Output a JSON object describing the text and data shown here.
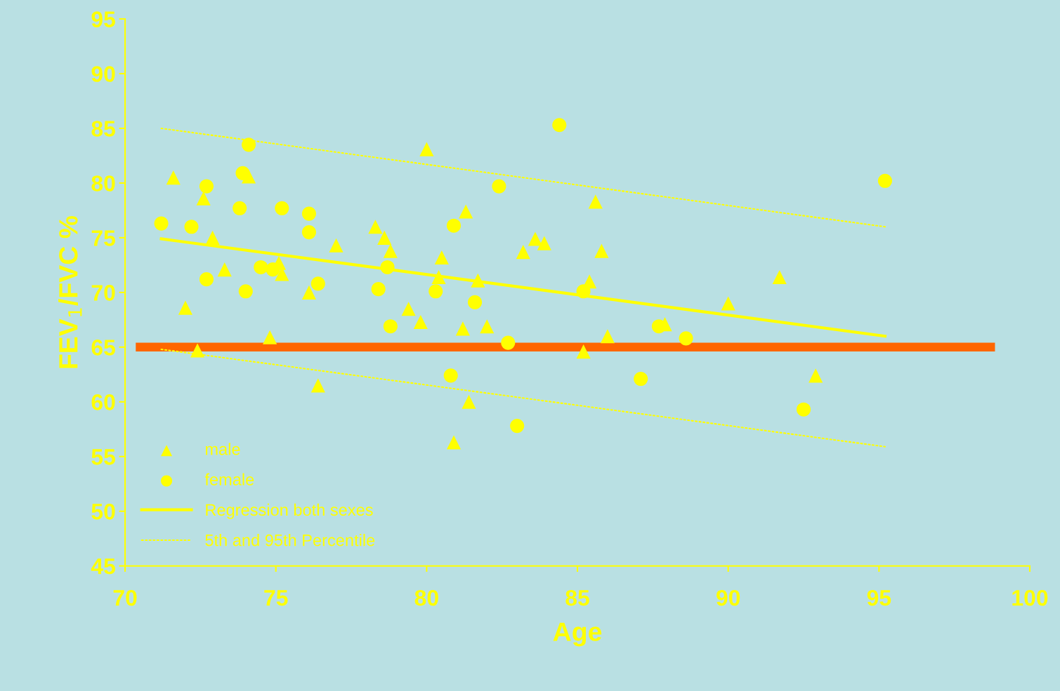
{
  "chart_data": {
    "type": "scatter",
    "xlabel": "Age",
    "ylabel": "FEV$_{1}$/FVC %",
    "xlim": [
      70,
      100
    ],
    "xticks": [
      70,
      75,
      80,
      85,
      90,
      95,
      100
    ],
    "ylim": [
      45,
      95
    ],
    "yticks": [
      45,
      50,
      55,
      60,
      65,
      70,
      75,
      80,
      85,
      90,
      95
    ],
    "grid": false,
    "legend": "bottom left",
    "series": [
      {
        "name": "male",
        "marker": "triangle",
        "color": "#ffff00",
        "x": [
          71.6,
          72.0,
          72.4,
          72.6,
          72.9,
          73.3,
          74.1,
          74.8,
          75.1,
          75.2,
          76.1,
          76.4,
          77.0,
          78.3,
          78.6,
          78.8,
          79.4,
          79.8,
          80.0,
          80.4,
          80.5,
          80.9,
          81.2,
          81.3,
          81.4,
          81.7,
          82.0,
          83.2,
          83.6,
          83.9,
          85.2,
          85.4,
          85.6,
          85.8,
          86.0,
          87.9,
          90.0,
          91.7,
          92.9
        ],
        "values": [
          80.5,
          68.6,
          64.7,
          78.6,
          75.0,
          72.1,
          80.6,
          65.9,
          72.7,
          71.7,
          70.0,
          61.5,
          74.3,
          76.0,
          75.0,
          73.8,
          68.5,
          67.3,
          83.1,
          71.4,
          73.2,
          56.3,
          66.7,
          77.4,
          60.0,
          71.1,
          66.9,
          73.7,
          74.9,
          74.5,
          64.6,
          71.0,
          78.3,
          73.8,
          66.0,
          67.1,
          69.0,
          71.4,
          62.4
        ]
      },
      {
        "name": "female",
        "marker": "circle",
        "color": "#ffff00",
        "x": [
          71.2,
          72.2,
          72.7,
          72.7,
          73.8,
          73.9,
          74.0,
          74.1,
          74.5,
          74.9,
          75.2,
          76.1,
          76.1,
          76.4,
          78.4,
          78.7,
          78.8,
          80.3,
          80.8,
          80.9,
          81.6,
          82.4,
          82.7,
          83.0,
          84.4,
          85.2,
          87.1,
          87.7,
          88.6,
          92.5,
          95.2
        ],
        "values": [
          76.3,
          76.0,
          79.7,
          71.2,
          77.7,
          80.9,
          70.1,
          83.5,
          72.3,
          72.1,
          77.7,
          75.5,
          77.2,
          70.8,
          70.3,
          72.3,
          66.9,
          70.1,
          62.4,
          76.1,
          69.1,
          79.7,
          65.4,
          57.8,
          85.3,
          70.1,
          62.1,
          66.9,
          65.8,
          59.3,
          80.2
        ]
      },
      {
        "name": "Regression both sexes",
        "type": "line",
        "line_style": "solid",
        "color": "#ffff00",
        "x": [
          71.2,
          95.2
        ],
        "values": [
          74.9,
          66.0
        ]
      },
      {
        "name": "5th and 95th Percentile",
        "type": "line",
        "line_style": "dotted",
        "color": "#ffff00",
        "x": [
          71.2,
          95.2
        ],
        "values": [
          85.0,
          76.0
        ]
      },
      {
        "type": "line",
        "line_style": "dotted",
        "color": "#ffff00",
        "x": [
          71.2,
          95.2
        ],
        "values": [
          64.8,
          55.9
        ]
      },
      {
        "type": "line",
        "line_style": "solid",
        "color": "#ff6600",
        "x": [
          70.5,
          98.7
        ],
        "values": [
          65,
          65
        ]
      }
    ]
  }
}
